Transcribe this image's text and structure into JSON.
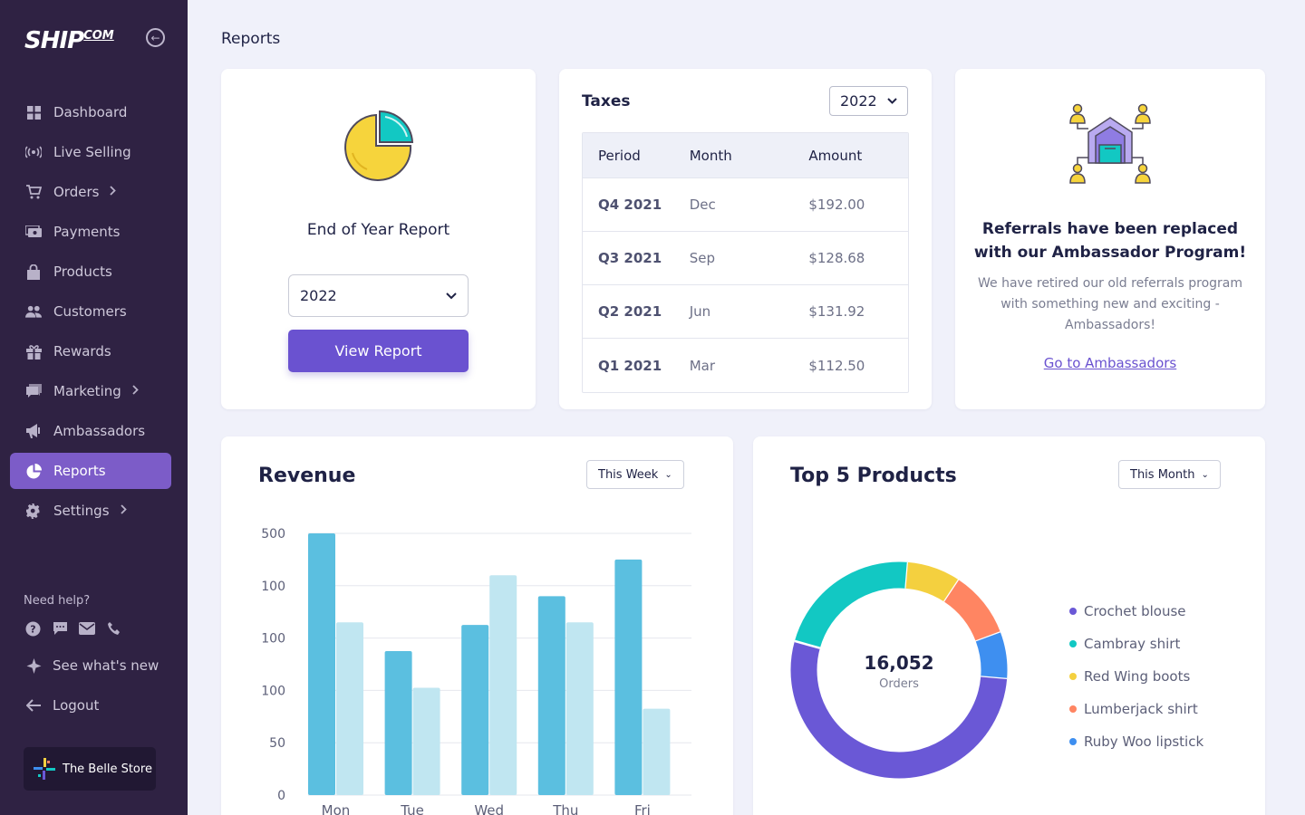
{
  "brand": {
    "logo_main": "SHIP",
    "logo_sup": "COM"
  },
  "sidebar": {
    "items": [
      {
        "label": "Dashboard",
        "icon": "grid-icon"
      },
      {
        "label": "Live Selling",
        "icon": "broadcast-icon"
      },
      {
        "label": "Orders",
        "icon": "cart-icon",
        "chevron": true
      },
      {
        "label": "Payments",
        "icon": "payments-icon"
      },
      {
        "label": "Products",
        "icon": "bag-icon"
      },
      {
        "label": "Customers",
        "icon": "people-icon"
      },
      {
        "label": "Rewards",
        "icon": "gift-icon"
      },
      {
        "label": "Marketing",
        "icon": "chat-icon",
        "chevron": true
      },
      {
        "label": "Ambassadors",
        "icon": "megaphone-icon"
      },
      {
        "label": "Reports",
        "icon": "pie-icon",
        "active": true
      },
      {
        "label": "Settings",
        "icon": "gear-icon",
        "chevron": true
      }
    ],
    "help_label": "Need help?",
    "whats_new": "See what's new",
    "logout": "Logout",
    "store_name": "The Belle Store"
  },
  "page": {
    "title": "Reports"
  },
  "end_of_year": {
    "title": "End of Year Report",
    "year": "2022",
    "button": "View Report"
  },
  "taxes": {
    "title": "Taxes",
    "year": "2022",
    "columns": [
      "Period",
      "Month",
      "Amount"
    ],
    "rows": [
      {
        "period": "Q4 2021",
        "month": "Dec",
        "amount": "$192.00"
      },
      {
        "period": "Q3 2021",
        "month": "Sep",
        "amount": "$128.68"
      },
      {
        "period": "Q2 2021",
        "month": "Jun",
        "amount": "$131.92"
      },
      {
        "period": "Q1 2021",
        "month": "Mar",
        "amount": "$112.50"
      }
    ]
  },
  "referrals": {
    "title": "Referrals have been replaced with our Ambassador Program!",
    "body": "We have retired our old referrals program with something new and exciting - Ambassadors!",
    "link": "Go to Ambassadors"
  },
  "revenue": {
    "title": "Revenue",
    "range": "This Week"
  },
  "top_products": {
    "title": "Top 5 Products",
    "range": "This Month",
    "center_value": "16,052",
    "center_label": "Orders"
  },
  "chart_data": [
    {
      "type": "bar",
      "title": "Revenue",
      "categories": [
        "Mon",
        "Tue",
        "Wed",
        "Thu",
        "Fri"
      ],
      "y_tick_labels": [
        "500",
        "100",
        "100",
        "100",
        "50",
        "0"
      ],
      "series": [
        {
          "values": [
            500,
            275,
            325,
            380,
            450
          ],
          "color": "#5bbfe0"
        },
        {
          "values": [
            330,
            205,
            420,
            330,
            165
          ],
          "color": "#c0e6f1"
        }
      ],
      "ylim": [
        0,
        500
      ],
      "grid": true,
      "legend": "none"
    },
    {
      "type": "pie",
      "title": "Top 5 Products",
      "labels": [
        "Crochet blouse",
        "Cambray shirt",
        "Red Wing boots",
        "Lumberjack shirt",
        "Ruby Woo lipstick"
      ],
      "values": [
        53,
        22,
        8,
        10,
        7
      ],
      "colors": [
        "#6a58d6",
        "#12c8c3",
        "#f4d03f",
        "#ff8562",
        "#3e8ff0"
      ],
      "legend": "right"
    }
  ]
}
